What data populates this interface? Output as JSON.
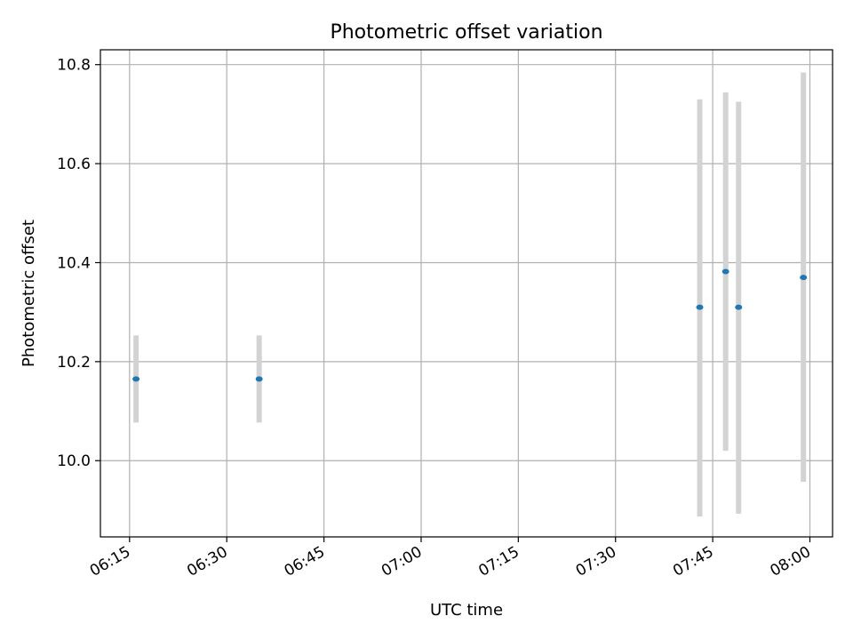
{
  "chart_data": {
    "type": "scatter",
    "title": "Photometric offset variation",
    "xlabel": "UTC time",
    "ylabel": "Photometric offset",
    "x_tick_labels": [
      "06:15",
      "06:30",
      "06:45",
      "07:00",
      "07:15",
      "07:30",
      "07:45",
      "08:00"
    ],
    "y_tick_labels": [
      "10.0",
      "10.2",
      "10.4",
      "10.6",
      "10.8"
    ],
    "y_ticks": [
      10.0,
      10.2,
      10.4,
      10.6,
      10.8
    ],
    "xlim": [
      "06:10:30",
      "08:03:30"
    ],
    "ylim": [
      9.846,
      10.83
    ],
    "grid": true,
    "legend": false,
    "series": [
      {
        "x": [
          "06:16",
          "06:35",
          "07:43",
          "07:47",
          "07:49",
          "07:59"
        ],
        "y": [
          10.165,
          10.165,
          10.31,
          10.382,
          10.31,
          10.37
        ],
        "error_low": [
          10.077,
          10.077,
          9.887,
          10.02,
          9.893,
          9.957
        ],
        "error_high": [
          10.253,
          10.253,
          10.73,
          10.744,
          10.725,
          10.784
        ]
      }
    ],
    "colors": {
      "point": "#1f77b4",
      "errorbar": "#d3d3d3",
      "grid": "#b0b0b0",
      "axes": "#000000"
    }
  }
}
